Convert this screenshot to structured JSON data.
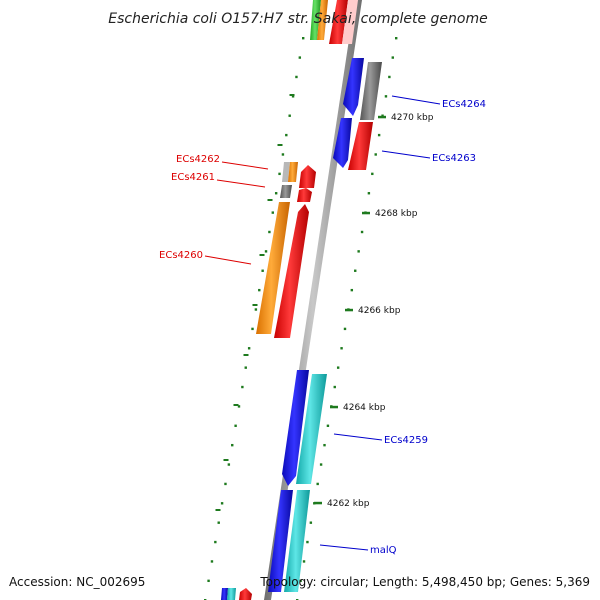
{
  "title": "Escherichia coli O157:H7 str. Sakai, complete genome",
  "footer": {
    "accession": "Accession: NC_002695",
    "topology": "Topology: circular; Length: 5,498,450 bp; Genes: 5,369"
  },
  "colors": {
    "axis": "#8a8a8a",
    "tick": "#1e7a1e",
    "label_forward": "#0000cc",
    "label_reverse": "#dd0000",
    "gene_blue": "#1010e0",
    "gene_cyan": "#20c8c8",
    "gene_red": "#ff0000",
    "gene_orange": "#ff8c00",
    "gene_gray": "#707070",
    "gene_green": "#33cc33"
  },
  "ticks": [
    {
      "kbp": 4270,
      "label": "4270 kbp"
    },
    {
      "kbp": 4268,
      "label": "4268 kbp"
    },
    {
      "kbp": 4266,
      "label": "4266 kbp"
    },
    {
      "kbp": 4264,
      "label": "4264 kbp"
    },
    {
      "kbp": 4262,
      "label": "4262 kbp"
    }
  ],
  "gene_labels": [
    {
      "name": "ECs4264",
      "color": "forward"
    },
    {
      "name": "ECs4263",
      "color": "forward"
    },
    {
      "name": "ECs4262",
      "color": "reverse"
    },
    {
      "name": "ECs4261",
      "color": "reverse"
    },
    {
      "name": "ECs4260",
      "color": "reverse"
    },
    {
      "name": "ECs4259",
      "color": "forward"
    },
    {
      "name": "malQ",
      "color": "forward"
    }
  ]
}
